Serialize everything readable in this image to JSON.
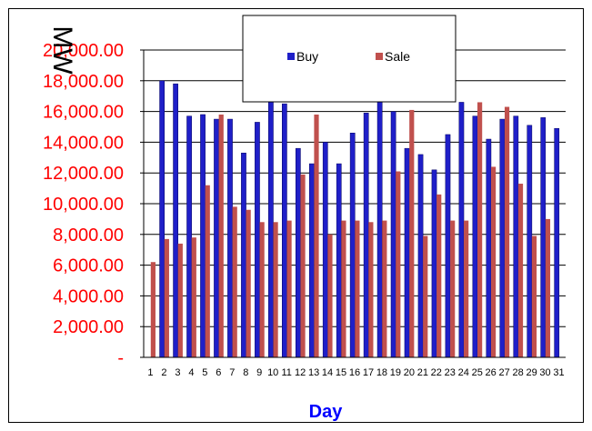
{
  "chart_data": {
    "type": "bar",
    "title": "",
    "xlabel": "Day",
    "ylabel": "MW",
    "ylim": [
      0,
      20000
    ],
    "yticks": [
      {
        "value": 0,
        "label": "-"
      },
      {
        "value": 2000,
        "label": "2,000.00"
      },
      {
        "value": 4000,
        "label": "4,000.00"
      },
      {
        "value": 6000,
        "label": "6,000.00"
      },
      {
        "value": 8000,
        "label": "8,000.00"
      },
      {
        "value": 10000,
        "label": "10,000.00"
      },
      {
        "value": 12000,
        "label": "12,000.00"
      },
      {
        "value": 14000,
        "label": "14,000.00"
      },
      {
        "value": 16000,
        "label": "16,000.00"
      },
      {
        "value": 18000,
        "label": "18,000.00"
      },
      {
        "value": 20000,
        "label": "20,000.00"
      }
    ],
    "categories": [
      "1",
      "2",
      "3",
      "4",
      "5",
      "6",
      "7",
      "8",
      "9",
      "10",
      "11",
      "12",
      "13",
      "14",
      "15",
      "16",
      "17",
      "18",
      "19",
      "20",
      "21",
      "22",
      "23",
      "24",
      "25",
      "26",
      "27",
      "28",
      "29",
      "30",
      "31"
    ],
    "series": [
      {
        "name": "Buy",
        "color": "#1f1fc8",
        "values": [
          0,
          18000,
          17800,
          15700,
          15800,
          15500,
          15500,
          13300,
          15300,
          16800,
          16500,
          13600,
          12600,
          14000,
          12600,
          14600,
          15900,
          16700,
          16000,
          13600,
          13200,
          12200,
          14500,
          16600,
          15700,
          14200,
          15500,
          15700,
          15100,
          15600,
          14900
        ]
      },
      {
        "name": "Sale",
        "color": "#c0504d",
        "values": [
          6200,
          7700,
          7400,
          7800,
          11200,
          15800,
          9800,
          9600,
          8800,
          8800,
          8900,
          11900,
          15800,
          8000,
          8900,
          8900,
          8800,
          8900,
          12100,
          16100,
          7900,
          10600,
          8900,
          8900,
          16600,
          12400,
          16300,
          11300,
          7900,
          9000,
          0
        ]
      }
    ],
    "grid": true,
    "legend": "top"
  }
}
